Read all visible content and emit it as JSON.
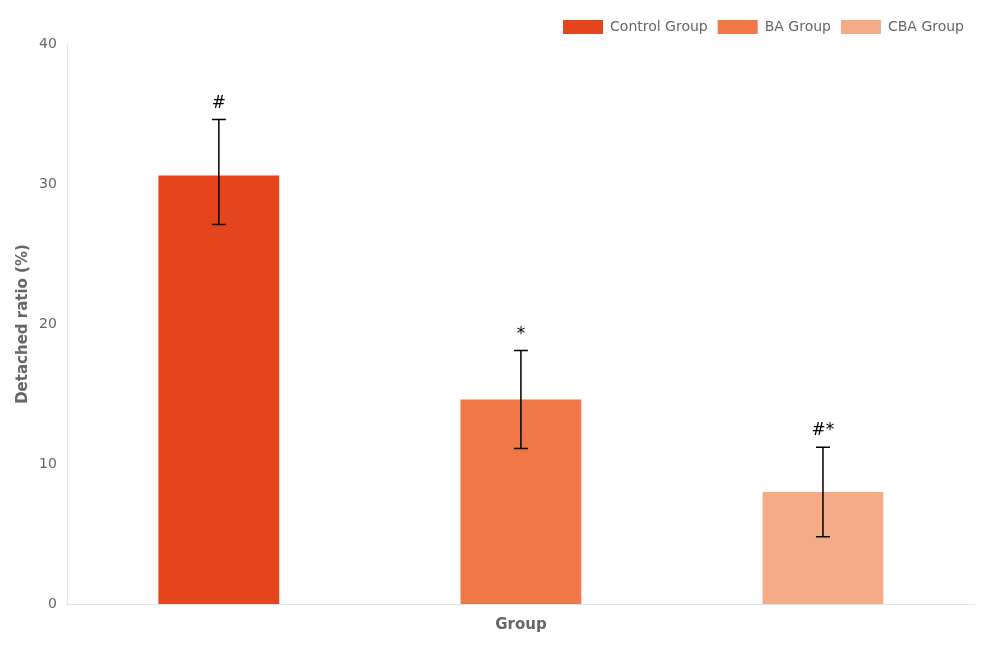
{
  "chart_data": {
    "type": "bar",
    "categories": [
      null,
      null,
      null
    ],
    "series": [
      {
        "name": "Control Group",
        "color": "#E5451C",
        "values": [
          30.6,
          null,
          null
        ],
        "errors_upper": [
          4.0,
          null,
          null
        ],
        "errors_lower": [
          3.5,
          null,
          null
        ]
      },
      {
        "name": "BA Group",
        "color": "#F07848",
        "values": [
          null,
          14.6,
          null
        ],
        "errors_upper": [
          null,
          3.5,
          null
        ],
        "errors_lower": [
          null,
          3.5,
          null
        ]
      },
      {
        "name": "CBA Group",
        "color": "#F5AA88",
        "values": [
          null,
          null,
          8.0
        ],
        "errors_upper": [
          null,
          null,
          3.2
        ],
        "errors_lower": [
          null,
          null,
          3.2
        ]
      }
    ],
    "annotations": [
      "#",
      "*",
      "#*"
    ],
    "xlabel": "Group",
    "ylabel": "Detached ratio (%)",
    "ylim": [
      0,
      40
    ],
    "yticks": [
      0,
      10,
      20,
      30,
      40
    ],
    "grid": false,
    "legend": "upper right",
    "tick_labels": "y"
  }
}
